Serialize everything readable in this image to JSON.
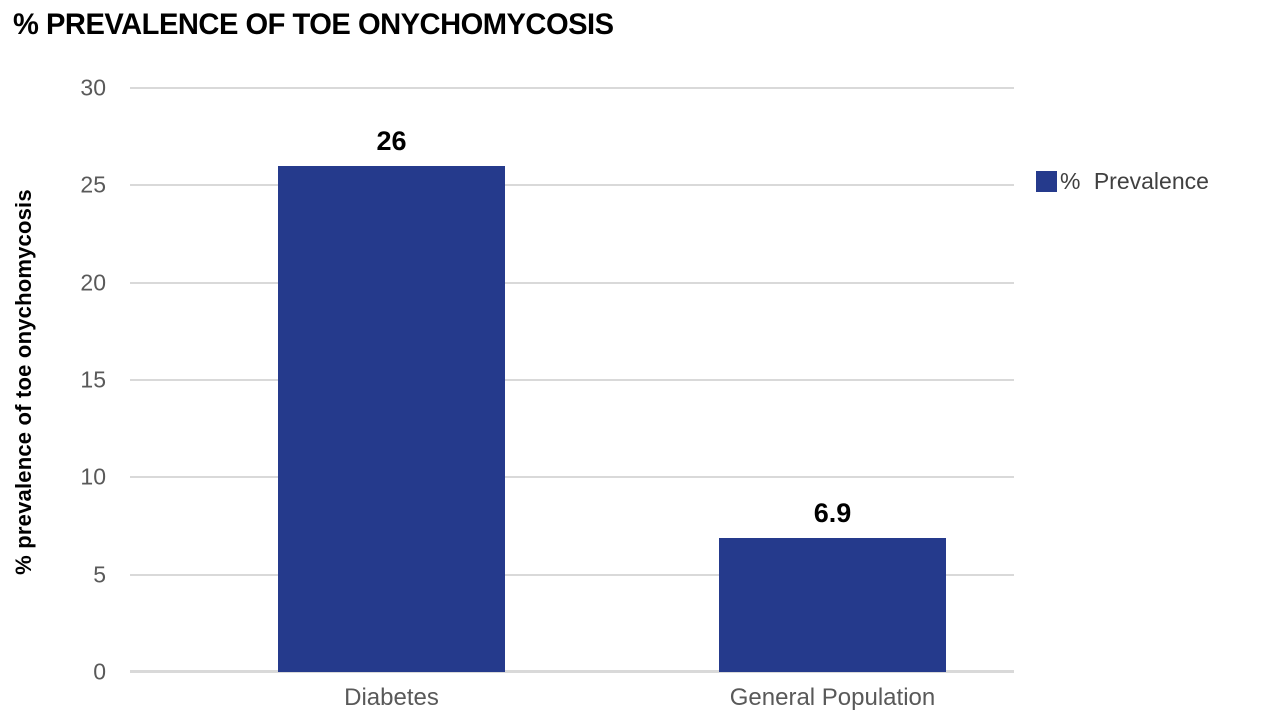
{
  "title": "% PREVALENCE OF TOE ONYCHOMYCOSIS",
  "y_axis_title": "% prevalence of toe onychomycosis",
  "legend": {
    "label": "% Prevalence",
    "swatch_color": "#253A8C"
  },
  "chart_data": {
    "type": "bar",
    "title": "% PREVALENCE OF TOE ONYCHOMYCOSIS",
    "categories": [
      "Diabetes",
      "General Population"
    ],
    "series": [
      {
        "name": "% Prevalence",
        "values": [
          26,
          6.9
        ]
      }
    ],
    "value_labels": [
      "26",
      "6.9"
    ],
    "xlabel": "",
    "ylabel": "% prevalence of toe onychomycosis",
    "ylim": [
      0,
      30
    ],
    "yticks": [
      0,
      5,
      10,
      15,
      20,
      25,
      30
    ],
    "grid": "horizontal",
    "legend_position": "right",
    "bar_color": "#253A8C"
  },
  "colors": {
    "bar": "#253A8C",
    "gridline": "#D9D9D9",
    "axis_line": "#D9D9D9",
    "tick_label": "#595959",
    "category_label": "#595959",
    "legend_text": "#404040",
    "title": "#000000"
  }
}
